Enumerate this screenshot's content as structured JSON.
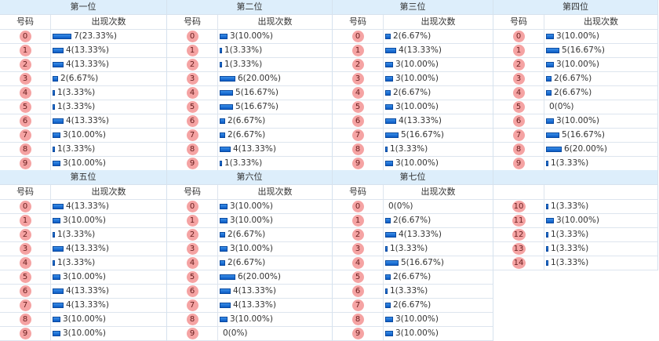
{
  "headers": {
    "number": "号码",
    "count": "出现次数"
  },
  "positions": [
    {
      "title": "第一位",
      "rows": [
        {
          "n": "0",
          "c": 7,
          "label": "7(23.33%)"
        },
        {
          "n": "1",
          "c": 4,
          "label": "4(13.33%)"
        },
        {
          "n": "2",
          "c": 4,
          "label": "4(13.33%)"
        },
        {
          "n": "3",
          "c": 2,
          "label": "2(6.67%)"
        },
        {
          "n": "4",
          "c": 1,
          "label": "1(3.33%)"
        },
        {
          "n": "5",
          "c": 1,
          "label": "1(3.33%)"
        },
        {
          "n": "6",
          "c": 4,
          "label": "4(13.33%)"
        },
        {
          "n": "7",
          "c": 3,
          "label": "3(10.00%)"
        },
        {
          "n": "8",
          "c": 1,
          "label": "1(3.33%)"
        },
        {
          "n": "9",
          "c": 3,
          "label": "3(10.00%)"
        }
      ]
    },
    {
      "title": "第二位",
      "rows": [
        {
          "n": "0",
          "c": 3,
          "label": "3(10.00%)"
        },
        {
          "n": "1",
          "c": 1,
          "label": "1(3.33%)"
        },
        {
          "n": "2",
          "c": 1,
          "label": "1(3.33%)"
        },
        {
          "n": "3",
          "c": 6,
          "label": "6(20.00%)"
        },
        {
          "n": "4",
          "c": 5,
          "label": "5(16.67%)"
        },
        {
          "n": "5",
          "c": 5,
          "label": "5(16.67%)"
        },
        {
          "n": "6",
          "c": 2,
          "label": "2(6.67%)"
        },
        {
          "n": "7",
          "c": 2,
          "label": "2(6.67%)"
        },
        {
          "n": "8",
          "c": 4,
          "label": "4(13.33%)"
        },
        {
          "n": "9",
          "c": 1,
          "label": "1(3.33%)"
        }
      ]
    },
    {
      "title": "第三位",
      "rows": [
        {
          "n": "0",
          "c": 2,
          "label": "2(6.67%)"
        },
        {
          "n": "1",
          "c": 4,
          "label": "4(13.33%)"
        },
        {
          "n": "2",
          "c": 3,
          "label": "3(10.00%)"
        },
        {
          "n": "3",
          "c": 3,
          "label": "3(10.00%)"
        },
        {
          "n": "4",
          "c": 2,
          "label": "2(6.67%)"
        },
        {
          "n": "5",
          "c": 3,
          "label": "3(10.00%)"
        },
        {
          "n": "6",
          "c": 4,
          "label": "4(13.33%)"
        },
        {
          "n": "7",
          "c": 5,
          "label": "5(16.67%)"
        },
        {
          "n": "8",
          "c": 1,
          "label": "1(3.33%)"
        },
        {
          "n": "9",
          "c": 3,
          "label": "3(10.00%)"
        }
      ]
    },
    {
      "title": "第四位",
      "rows": [
        {
          "n": "0",
          "c": 3,
          "label": "3(10.00%)"
        },
        {
          "n": "1",
          "c": 5,
          "label": "5(16.67%)"
        },
        {
          "n": "2",
          "c": 3,
          "label": "3(10.00%)"
        },
        {
          "n": "3",
          "c": 2,
          "label": "2(6.67%)"
        },
        {
          "n": "4",
          "c": 2,
          "label": "2(6.67%)"
        },
        {
          "n": "5",
          "c": 0,
          "label": "0(0%)"
        },
        {
          "n": "6",
          "c": 3,
          "label": "3(10.00%)"
        },
        {
          "n": "7",
          "c": 5,
          "label": "5(16.67%)"
        },
        {
          "n": "8",
          "c": 6,
          "label": "6(20.00%)"
        },
        {
          "n": "9",
          "c": 1,
          "label": "1(3.33%)"
        }
      ]
    },
    {
      "title": "第五位",
      "rows": [
        {
          "n": "0",
          "c": 4,
          "label": "4(13.33%)"
        },
        {
          "n": "1",
          "c": 3,
          "label": "3(10.00%)"
        },
        {
          "n": "2",
          "c": 1,
          "label": "1(3.33%)"
        },
        {
          "n": "3",
          "c": 4,
          "label": "4(13.33%)"
        },
        {
          "n": "4",
          "c": 1,
          "label": "1(3.33%)"
        },
        {
          "n": "5",
          "c": 3,
          "label": "3(10.00%)"
        },
        {
          "n": "6",
          "c": 4,
          "label": "4(13.33%)"
        },
        {
          "n": "7",
          "c": 4,
          "label": "4(13.33%)"
        },
        {
          "n": "8",
          "c": 3,
          "label": "3(10.00%)"
        },
        {
          "n": "9",
          "c": 3,
          "label": "3(10.00%)"
        }
      ]
    },
    {
      "title": "第六位",
      "rows": [
        {
          "n": "0",
          "c": 3,
          "label": "3(10.00%)"
        },
        {
          "n": "1",
          "c": 3,
          "label": "3(10.00%)"
        },
        {
          "n": "2",
          "c": 2,
          "label": "2(6.67%)"
        },
        {
          "n": "3",
          "c": 3,
          "label": "3(10.00%)"
        },
        {
          "n": "4",
          "c": 2,
          "label": "2(6.67%)"
        },
        {
          "n": "5",
          "c": 6,
          "label": "6(20.00%)"
        },
        {
          "n": "6",
          "c": 4,
          "label": "4(13.33%)"
        },
        {
          "n": "7",
          "c": 4,
          "label": "4(13.33%)"
        },
        {
          "n": "8",
          "c": 3,
          "label": "3(10.00%)"
        },
        {
          "n": "9",
          "c": 0,
          "label": "0(0%)"
        }
      ]
    },
    {
      "title": "第七位",
      "rows": [
        {
          "n": "0",
          "c": 0,
          "label": "0(0%)"
        },
        {
          "n": "1",
          "c": 2,
          "label": "2(6.67%)"
        },
        {
          "n": "2",
          "c": 4,
          "label": "4(13.33%)"
        },
        {
          "n": "3",
          "c": 1,
          "label": "1(3.33%)"
        },
        {
          "n": "4",
          "c": 5,
          "label": "5(16.67%)"
        },
        {
          "n": "5",
          "c": 2,
          "label": "2(6.67%)"
        },
        {
          "n": "6",
          "c": 1,
          "label": "1(3.33%)"
        },
        {
          "n": "7",
          "c": 2,
          "label": "2(6.67%)"
        },
        {
          "n": "8",
          "c": 3,
          "label": "3(10.00%)"
        },
        {
          "n": "9",
          "c": 3,
          "label": "3(10.00%)"
        }
      ]
    },
    {
      "title": "",
      "blank_subhead": true,
      "rows": [
        {
          "n": "10",
          "c": 1,
          "label": "1(3.33%)"
        },
        {
          "n": "11",
          "c": 3,
          "label": "3(10.00%)"
        },
        {
          "n": "12",
          "c": 1,
          "label": "1(3.33%)"
        },
        {
          "n": "13",
          "c": 1,
          "label": "1(3.33%)"
        },
        {
          "n": "14",
          "c": 1,
          "label": "1(3.33%)"
        }
      ]
    }
  ],
  "colors": {
    "ball": "#f5a3a3",
    "bar": "#0b5bc4",
    "header_bg": "#ddeefb",
    "border": "#dde5ee"
  }
}
